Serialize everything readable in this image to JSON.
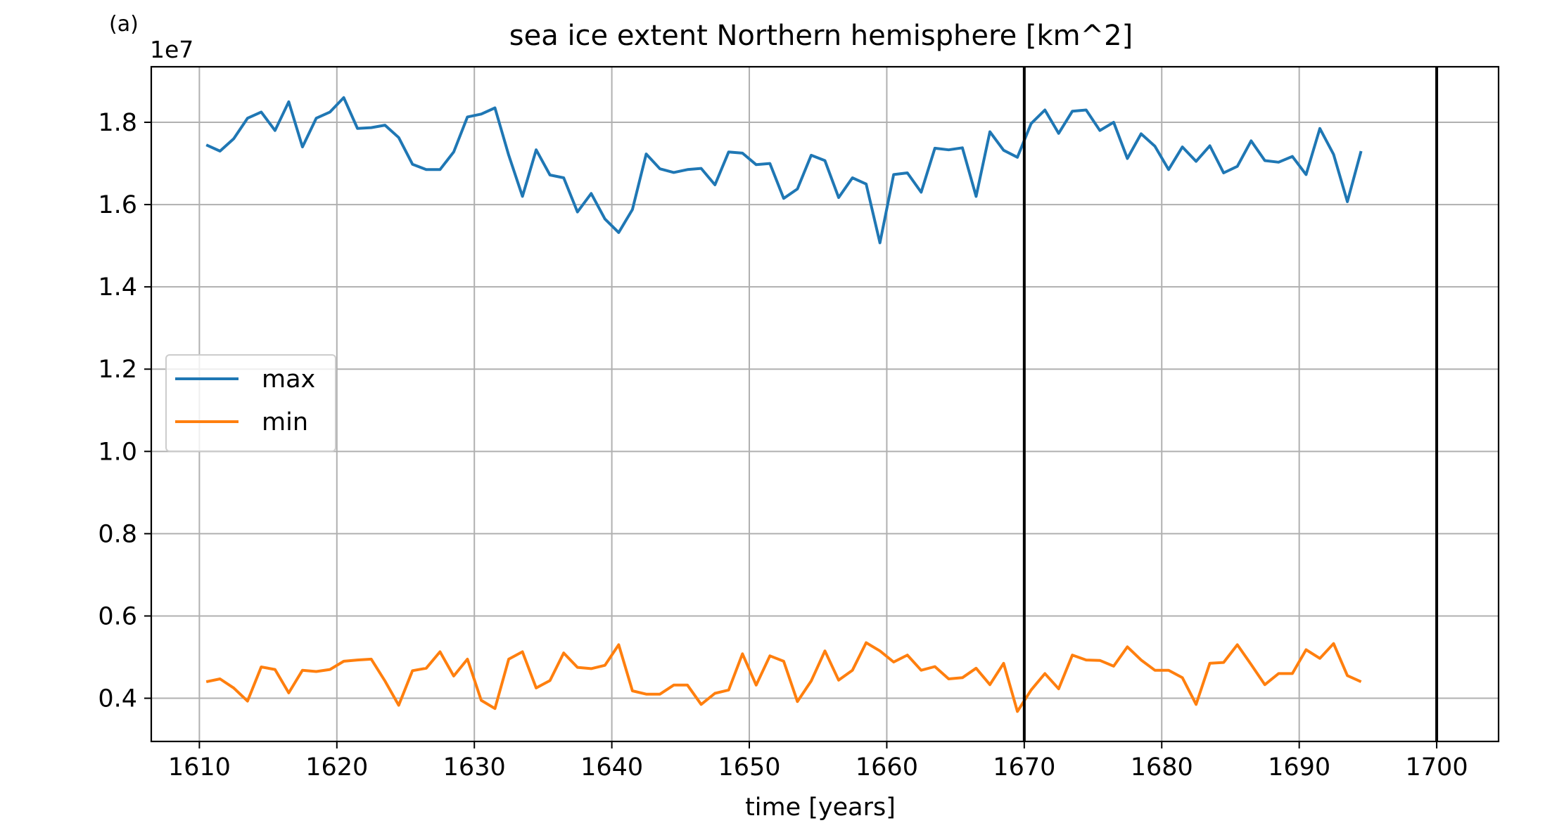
{
  "panel_label": "(a)",
  "chart_data": {
    "type": "line",
    "title": "sea ice extent Northern hemisphere [km^2]",
    "xlabel": "time [years]",
    "ylabel": "",
    "y_offset_label": "1e7",
    "xlim": [
      1606.5,
      1704.5
    ],
    "ylim": [
      0.295,
      1.935
    ],
    "y_scale_note": "values shown in units of 1e7 km^2",
    "x_ticks": [
      1610,
      1620,
      1630,
      1640,
      1650,
      1660,
      1670,
      1680,
      1690,
      1700
    ],
    "y_ticks": [
      0.4,
      0.6,
      0.8,
      1.0,
      1.2,
      1.4,
      1.6,
      1.8
    ],
    "grid": true,
    "legend_position": "center-left",
    "vertical_lines": [
      1670,
      1700
    ],
    "x": [
      1610.5,
      1611.5,
      1612.5,
      1613.5,
      1614.5,
      1615.5,
      1616.5,
      1617.5,
      1618.5,
      1619.5,
      1620.5,
      1621.5,
      1622.5,
      1623.5,
      1624.5,
      1625.5,
      1626.5,
      1627.5,
      1628.5,
      1629.5,
      1630.5,
      1631.5,
      1632.5,
      1633.5,
      1634.5,
      1635.5,
      1636.5,
      1637.5,
      1638.5,
      1639.5,
      1640.5,
      1641.5,
      1642.5,
      1643.5,
      1644.5,
      1645.5,
      1646.5,
      1647.5,
      1648.5,
      1649.5,
      1650.5,
      1651.5,
      1652.5,
      1653.5,
      1654.5,
      1655.5,
      1656.5,
      1657.5,
      1658.5,
      1659.5,
      1660.5,
      1661.5,
      1662.5,
      1663.5,
      1664.5,
      1665.5,
      1666.5,
      1667.5,
      1668.5,
      1669.5,
      1670.5,
      1671.5,
      1672.5,
      1673.5,
      1674.5,
      1675.5,
      1676.5,
      1677.5,
      1678.5,
      1679.5,
      1680.5,
      1681.5,
      1682.5,
      1683.5,
      1684.5,
      1685.5,
      1686.5,
      1687.5,
      1688.5,
      1689.5,
      1690.5,
      1691.5,
      1692.5,
      1693.5,
      1694.5
    ],
    "series": [
      {
        "name": "max",
        "color": "#1f77b4",
        "values": [
          1.745,
          1.73,
          1.76,
          1.81,
          1.825,
          1.78,
          1.85,
          1.74,
          1.81,
          1.825,
          1.86,
          1.785,
          1.787,
          1.793,
          1.763,
          1.698,
          1.685,
          1.685,
          1.728,
          1.813,
          1.82,
          1.835,
          1.72,
          1.62,
          1.733,
          1.672,
          1.665,
          1.582,
          1.627,
          1.565,
          1.532,
          1.588,
          1.723,
          1.687,
          1.678,
          1.685,
          1.688,
          1.648,
          1.728,
          1.725,
          1.697,
          1.7,
          1.615,
          1.638,
          1.72,
          1.707,
          1.617,
          1.665,
          1.65,
          1.507,
          1.673,
          1.677,
          1.63,
          1.737,
          1.733,
          1.738,
          1.62,
          1.777,
          1.732,
          1.715,
          1.797,
          1.83,
          1.773,
          1.827,
          1.83,
          1.78,
          1.8,
          1.712,
          1.772,
          1.742,
          1.685,
          1.74,
          1.705,
          1.743,
          1.677,
          1.693,
          1.755,
          1.707,
          1.703,
          1.717,
          1.673,
          1.785,
          1.722,
          1.607,
          1.73
        ]
      },
      {
        "name": "min",
        "color": "#ff7f0e",
        "values": [
          0.44,
          0.447,
          0.425,
          0.393,
          0.476,
          0.47,
          0.413,
          0.468,
          0.465,
          0.47,
          0.49,
          0.493,
          0.495,
          0.442,
          0.383,
          0.467,
          0.473,
          0.513,
          0.454,
          0.495,
          0.395,
          0.375,
          0.495,
          0.513,
          0.425,
          0.443,
          0.51,
          0.475,
          0.472,
          0.48,
          0.53,
          0.418,
          0.41,
          0.41,
          0.432,
          0.432,
          0.385,
          0.412,
          0.42,
          0.508,
          0.432,
          0.503,
          0.49,
          0.392,
          0.442,
          0.515,
          0.444,
          0.468,
          0.535,
          0.515,
          0.488,
          0.505,
          0.468,
          0.477,
          0.447,
          0.45,
          0.473,
          0.433,
          0.485,
          0.368,
          0.42,
          0.46,
          0.423,
          0.505,
          0.493,
          0.492,
          0.478,
          0.525,
          0.493,
          0.468,
          0.468,
          0.45,
          0.385,
          0.485,
          0.487,
          0.53,
          0.482,
          0.433,
          0.46,
          0.46,
          0.518,
          0.497,
          0.533,
          0.455,
          0.44
        ]
      }
    ]
  }
}
